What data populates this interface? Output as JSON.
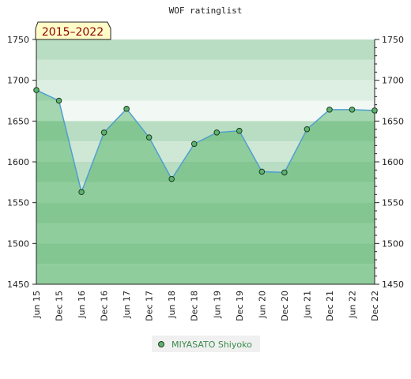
{
  "chart_data": {
    "type": "line",
    "title": "WOF ratinglist",
    "date_range_label": "2015–2022",
    "x": [
      "Jun 15",
      "Dec 15",
      "Jun 16",
      "Dec 16",
      "Jun 17",
      "Dec 17",
      "Jun 18",
      "Dec 18",
      "Jun 19",
      "Dec 19",
      "Jun 20",
      "Dec 20",
      "Jun 21",
      "Dec 21",
      "Jun 22",
      "Dec 22"
    ],
    "series": [
      {
        "name": "MIYASATO Shiyoko",
        "values": [
          1688,
          1675,
          1563,
          1636,
          1665,
          1630,
          1579,
          1622,
          1636,
          1638,
          1588,
          1587,
          1640,
          1664,
          1664,
          1663
        ]
      }
    ],
    "ylim": [
      1450,
      1750
    ],
    "yticks": [
      1450,
      1500,
      1550,
      1600,
      1650,
      1700,
      1750
    ],
    "xlabel": "",
    "ylabel": "",
    "grid": false,
    "legend_position": "bottom",
    "colors": {
      "line": "#4f9fcf",
      "marker_fill": "#5cb270",
      "marker_stroke": "#1e3d1e",
      "area_fill": "#3aa850",
      "legend_bg": "#f0f0f0",
      "range_box_bg": "#fffcc8"
    }
  }
}
